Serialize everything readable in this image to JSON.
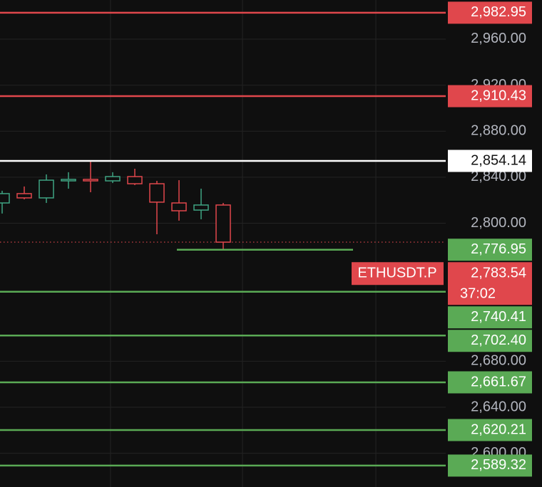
{
  "chart_data": {
    "type": "candlestick",
    "ylim": [
      2570.7,
      2994.0
    ],
    "yticks": [
      {
        "value": 2960,
        "label": "2,960.00"
      },
      {
        "value": 2920,
        "label": "2,920.00"
      },
      {
        "value": 2880,
        "label": "2,880.00"
      },
      {
        "value": 2840,
        "label": "2,840.00"
      },
      {
        "value": 2800,
        "label": "2,800.00"
      },
      {
        "value": 2680,
        "label": "2,680.00"
      },
      {
        "value": 2640,
        "label": "2,640.00"
      },
      {
        "value": 2600,
        "label": "2,600.00"
      }
    ],
    "grid": true,
    "categories": [
      null,
      null,
      null,
      null,
      null,
      null,
      null,
      null,
      null,
      null,
      null
    ],
    "open": [
      2817.6,
      2825.7,
      2822.0,
      2836.8,
      2838.1,
      2836.8,
      2840.5,
      2834.3,
      2817.6,
      2811.4,
      2815.8
    ],
    "high": [
      2828.2,
      2831.9,
      2842.4,
      2844.3,
      2853.5,
      2844.3,
      2847.3,
      2836.8,
      2837.4,
      2830.0,
      2817.6
    ],
    "low": [
      2808.4,
      2820.7,
      2817.6,
      2830.0,
      2826.9,
      2834.9,
      2833.1,
      2790.4,
      2802.2,
      2803.4,
      2776.95
    ],
    "close": [
      2825.7,
      2822.0,
      2837.4,
      2838.1,
      2836.8,
      2840.5,
      2834.3,
      2818.3,
      2810.8,
      2815.8,
      2783.54
    ],
    "up_color": "#3fa382",
    "down_color": "#e0474c",
    "levels": [
      {
        "value": 2982.95,
        "label": "2,982.95",
        "color": "#e0474c"
      },
      {
        "value": 2910.43,
        "label": "2,910.43",
        "color": "#e0474c"
      },
      {
        "value": 2854.14,
        "label": "2,854.14",
        "color": "#ffffff"
      },
      {
        "value": 2776.95,
        "label": "2,776.95",
        "color": "#5aaa55"
      },
      {
        "value": 2740.41,
        "label": "2,740.41",
        "color": "#5aaa55"
      },
      {
        "value": 2702.4,
        "label": "2,702.40",
        "color": "#5aaa55"
      },
      {
        "value": 2661.67,
        "label": "2,661.67",
        "color": "#5aaa55"
      },
      {
        "value": 2620.21,
        "label": "2,620.21",
        "color": "#5aaa55"
      },
      {
        "value": 2589.32,
        "label": "2,589.32",
        "color": "#5aaa55"
      }
    ],
    "last_price": {
      "value": 2783.54,
      "label": "2,783.54",
      "symbol": "ETHUSDT.P",
      "countdown": "37:02",
      "color": "#e0474c"
    }
  }
}
